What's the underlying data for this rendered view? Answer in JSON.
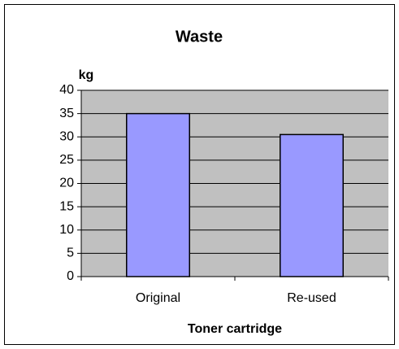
{
  "chart_data": {
    "type": "bar",
    "title": "Waste",
    "y_label": "kg",
    "x_label": "Toner cartridge",
    "categories": [
      "Original",
      "Re-used"
    ],
    "values": [
      35,
      30.5
    ],
    "color": "#9999ff",
    "ylim": [
      0,
      40
    ],
    "yticks": [
      0,
      5,
      10,
      15,
      20,
      25,
      30,
      35,
      40
    ],
    "grid": true
  }
}
